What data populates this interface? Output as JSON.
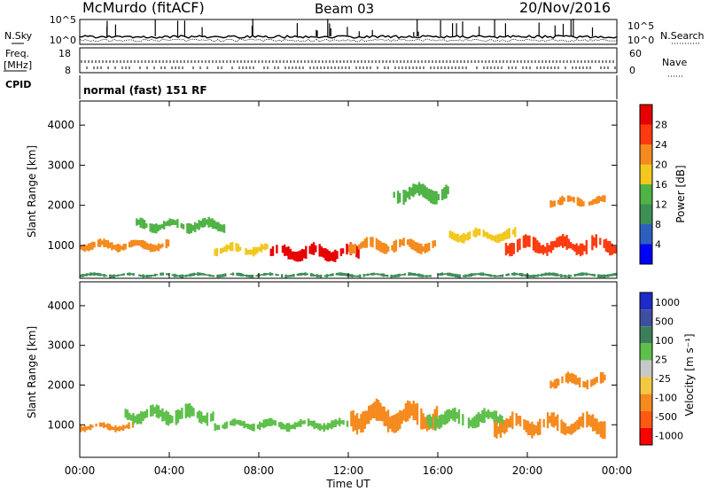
{
  "header": {
    "station": "McMurdo (fitACF)",
    "beam": "Beam 03",
    "date": "20/Nov/2016"
  },
  "mode_text": "normal (fast) 151 RF",
  "side_labels": {
    "nsky": "N.Sky",
    "nsearch": "N.Search",
    "freq_line1": "Freq.",
    "freq_line2": "[MHz]",
    "nave": "Nave",
    "cpid": "CPID"
  },
  "noise_ticks_left": [
    "10^5",
    "10^0"
  ],
  "noise_ticks_right": [
    "10^5",
    "10^0"
  ],
  "freq_ticks_left": [
    "18",
    "8"
  ],
  "freq_ticks_right": [
    "60",
    "0"
  ],
  "xlabel": "Time UT",
  "colors": {
    "power": [
      "#0000ff",
      "#2d5fbf",
      "#3d8f56",
      "#4fb346",
      "#f2c81e",
      "#f58a1e",
      "#ff3a0f",
      "#e60000"
    ],
    "velocity": [
      "#1c2cc9",
      "#3e4ea0",
      "#3a7f5a",
      "#5ec04a",
      "#c8c8c8",
      "#f5c840",
      "#f58a1e",
      "#ff5a10",
      "#ff0000"
    ]
  },
  "chart_data": [
    {
      "type": "heatmap",
      "title": "",
      "quantity": "Power",
      "xlabel": "Time UT",
      "ylabel": "Slant Range [km]",
      "xlim": [
        0,
        24
      ],
      "ylim": [
        180,
        4600
      ],
      "x_ticks": [
        "00:00",
        "04:00",
        "08:00",
        "12:00",
        "16:00",
        "20:00",
        "00:00"
      ],
      "y_ticks": [
        1000,
        2000,
        3000,
        4000
      ],
      "colorbar": {
        "label": "Power [dB]",
        "ticks": [
          4,
          8,
          12,
          16,
          20,
          24,
          28
        ],
        "range": [
          0,
          32
        ]
      },
      "features": [
        {
          "t_start": 0.0,
          "t_end": 4.0,
          "range_km": 1000,
          "width_km": 150,
          "level_db": 20
        },
        {
          "t_start": 2.5,
          "t_end": 6.5,
          "range_km": 1500,
          "width_km": 180,
          "level_db": 12
        },
        {
          "t_start": 6.0,
          "t_end": 8.5,
          "range_km": 900,
          "width_km": 160,
          "level_db": 18
        },
        {
          "t_start": 8.5,
          "t_end": 12.5,
          "range_km": 820,
          "width_km": 220,
          "level_db": 28
        },
        {
          "t_start": 12.0,
          "t_end": 16.0,
          "range_km": 1000,
          "width_km": 200,
          "level_db": 22
        },
        {
          "t_start": 14.0,
          "t_end": 16.5,
          "range_km": 2300,
          "width_km": 250,
          "level_db": 12
        },
        {
          "t_start": 16.5,
          "t_end": 19.5,
          "range_km": 1250,
          "width_km": 180,
          "level_db": 16
        },
        {
          "t_start": 19.0,
          "t_end": 24.0,
          "range_km": 1000,
          "width_km": 250,
          "level_db": 24
        },
        {
          "t_start": 21.0,
          "t_end": 23.5,
          "range_km": 2100,
          "width_km": 150,
          "level_db": 20
        },
        {
          "t_start": 0.0,
          "t_end": 24.0,
          "range_km": 260,
          "width_km": 60,
          "level_db": 8
        }
      ]
    },
    {
      "type": "heatmap",
      "title": "",
      "quantity": "Velocity",
      "xlabel": "Time UT",
      "ylabel": "Slant Range [km]",
      "xlim": [
        0,
        24
      ],
      "ylim": [
        180,
        4600
      ],
      "x_ticks": [
        "00:00",
        "04:00",
        "08:00",
        "12:00",
        "16:00",
        "20:00",
        "00:00"
      ],
      "y_ticks": [
        1000,
        2000,
        3000,
        4000
      ],
      "colorbar": {
        "label": "Velocity [m s⁻¹]",
        "ticks": [
          "1000",
          "500",
          "100",
          "25",
          "-25",
          "-100",
          "-500",
          "-1000"
        ]
      },
      "features": [
        {
          "t_start": 0.0,
          "t_end": 2.5,
          "range_km": 950,
          "width_km": 120,
          "velocity_ms": -100
        },
        {
          "t_start": 2.0,
          "t_end": 6.0,
          "range_km": 1250,
          "width_km": 250,
          "velocity_ms": 100
        },
        {
          "t_start": 6.0,
          "t_end": 12.0,
          "range_km": 1000,
          "width_km": 150,
          "velocity_ms": 50
        },
        {
          "t_start": 12.0,
          "t_end": 16.0,
          "range_km": 1200,
          "width_km": 400,
          "velocity_ms": -100
        },
        {
          "t_start": 15.5,
          "t_end": 19.0,
          "range_km": 1150,
          "width_km": 250,
          "velocity_ms": 100
        },
        {
          "t_start": 18.5,
          "t_end": 23.5,
          "range_km": 1000,
          "width_km": 300,
          "velocity_ms": -200
        },
        {
          "t_start": 21.0,
          "t_end": 23.5,
          "range_km": 2100,
          "width_km": 200,
          "velocity_ms": -200
        }
      ]
    }
  ]
}
